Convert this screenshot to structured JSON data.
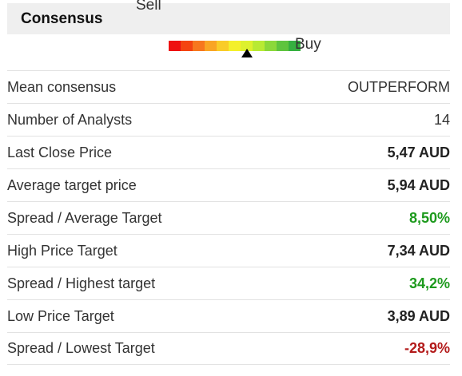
{
  "consensus": {
    "title": "Consensus",
    "gauge": {
      "sell_label": "Sell",
      "buy_label": "Buy",
      "segment_colors": [
        "#ee1111",
        "#f44411",
        "#f7771e",
        "#f9a524",
        "#f9cc28",
        "#f4f02a",
        "#ddf12e",
        "#b8ea34",
        "#8bd83a",
        "#5ec43e",
        "#35b040"
      ],
      "pointer_segment_index": 6.5
    },
    "rows": [
      {
        "label": "Mean consensus",
        "value": "OUTPERFORM",
        "style": "plain"
      },
      {
        "label": "Number of Analysts",
        "value": "14",
        "style": "plain"
      },
      {
        "label": "Last Close Price",
        "value": "5,47 AUD",
        "style": "bold"
      },
      {
        "label": "Average target price",
        "value": "5,94 AUD",
        "style": "bold"
      },
      {
        "label": "Spread / Average Target",
        "value": "8,50%",
        "style": "positive"
      },
      {
        "label": "High Price Target",
        "value": "7,34 AUD",
        "style": "bold"
      },
      {
        "label": "Spread / Highest target",
        "value": "34,2%",
        "style": "positive"
      },
      {
        "label": "Low Price Target",
        "value": "3,89 AUD",
        "style": "bold"
      },
      {
        "label": "Spread / Lowest Target",
        "value": "-28,9%",
        "style": "negative"
      }
    ],
    "colors": {
      "positive": "#1d9a1d",
      "negative": "#b31b1b"
    }
  }
}
